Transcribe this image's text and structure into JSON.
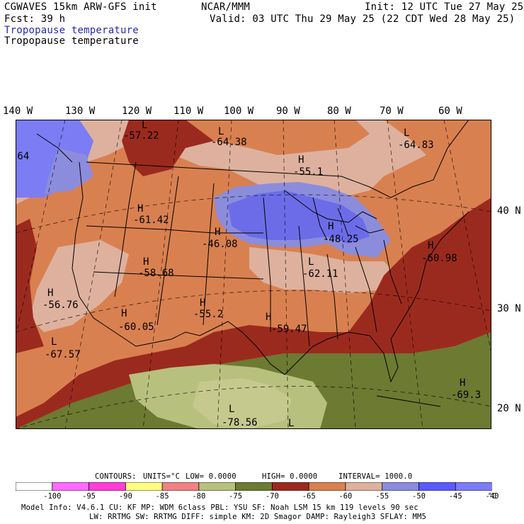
{
  "header": {
    "model": "CGWAVES 15km ARW-GFS init",
    "org": "NCAR/MMM",
    "init": "Init: 12 UTC Tue 27 May 25",
    "fcst": "Fcst:   39 h",
    "valid": "Valid: 03 UTC Thu 29 May 25 (22 CDT Wed 28 May 25)",
    "field_contour": "Tropopause temperature",
    "field_fill": "Tropopause temperature"
  },
  "map": {
    "lon_labels": [
      "140 W",
      "130 W",
      "120 W",
      "110 W",
      "100 W",
      "90 W",
      "80 W",
      "70 W",
      "60 W"
    ],
    "lat_labels": [
      "40 N",
      "30 N",
      "20 N"
    ],
    "markers": [
      {
        "type": "L",
        "value": "-57.22"
      },
      {
        "type": "L",
        "value": "-64.38"
      },
      {
        "type": "L",
        "value": "-64.83"
      },
      {
        "type": "H",
        "value": "-55.1"
      },
      {
        "type": "H",
        "value": "-61.42"
      },
      {
        "type": "H",
        "value": "-46.08"
      },
      {
        "type": "H",
        "value": "-48.25"
      },
      {
        "type": "H",
        "value": "-60.98"
      },
      {
        "type": "H",
        "value": "-58.68"
      },
      {
        "type": "L",
        "value": "-62.11"
      },
      {
        "type": "H",
        "value": "-56.76"
      },
      {
        "type": "H",
        "value": "-55.2"
      },
      {
        "type": "H",
        "value": "-60.05"
      },
      {
        "type": "H",
        "value": "-59.47"
      },
      {
        "type": "L",
        "value": "-67.57"
      },
      {
        "type": "H",
        "value": "-69.3"
      },
      {
        "type": "L",
        "value": "-78.56"
      },
      {
        "type": "L",
        "value": ""
      }
    ],
    "edge_values": [
      ".64"
    ],
    "fill_colors": {
      "below_-75": "#8c9a4c",
      "-75_-70": "#6c7a32",
      "-70_-65": "#9b2a1e",
      "-65_-60": "#d98050",
      "-60_-55": "#ddb19e",
      "-55_-50": "#8c8cdd",
      "-50_-45": "#6c6ce8",
      "-45_-40": "#7c7cf4",
      "-75_-80": "#b8c07e",
      "shelf_light": "#c6c98e"
    }
  },
  "contours_line": {
    "contours": "CONTOURS:",
    "units": "UNITS=°C",
    "low": "LOW=  0.0000",
    "high": "HIGH=  0.0000",
    "interval": "INTERVAL=    1000.0"
  },
  "colorbar": {
    "colors": [
      "#ffffff",
      "#ff6bff",
      "#ff3ed8",
      "#ffff80",
      "#f08282",
      "#b8c07e",
      "#6c7a32",
      "#9b2a1e",
      "#d98050",
      "#ddb19e",
      "#8c8cdd",
      "#5a5aff",
      "#7c7cf8"
    ],
    "labels": [
      "-100",
      "-95",
      "-90",
      "-85",
      "-80",
      "-75",
      "-70",
      "-65",
      "-60",
      "-55",
      "-50",
      "-45",
      "-40"
    ],
    "unit": "°C"
  },
  "footer": {
    "line1": "Model Info: V4.6.1     CU: KF      MP: WDM 6class  PBL: YSU       SF: Noah LSM    15 km  119 levels  90 sec",
    "line2": "LW: RRTMG    SW: RRTMG  DIFF: simple KM: 2D Smagor DAMP: Rayleigh3  SFLAY: MM5"
  }
}
